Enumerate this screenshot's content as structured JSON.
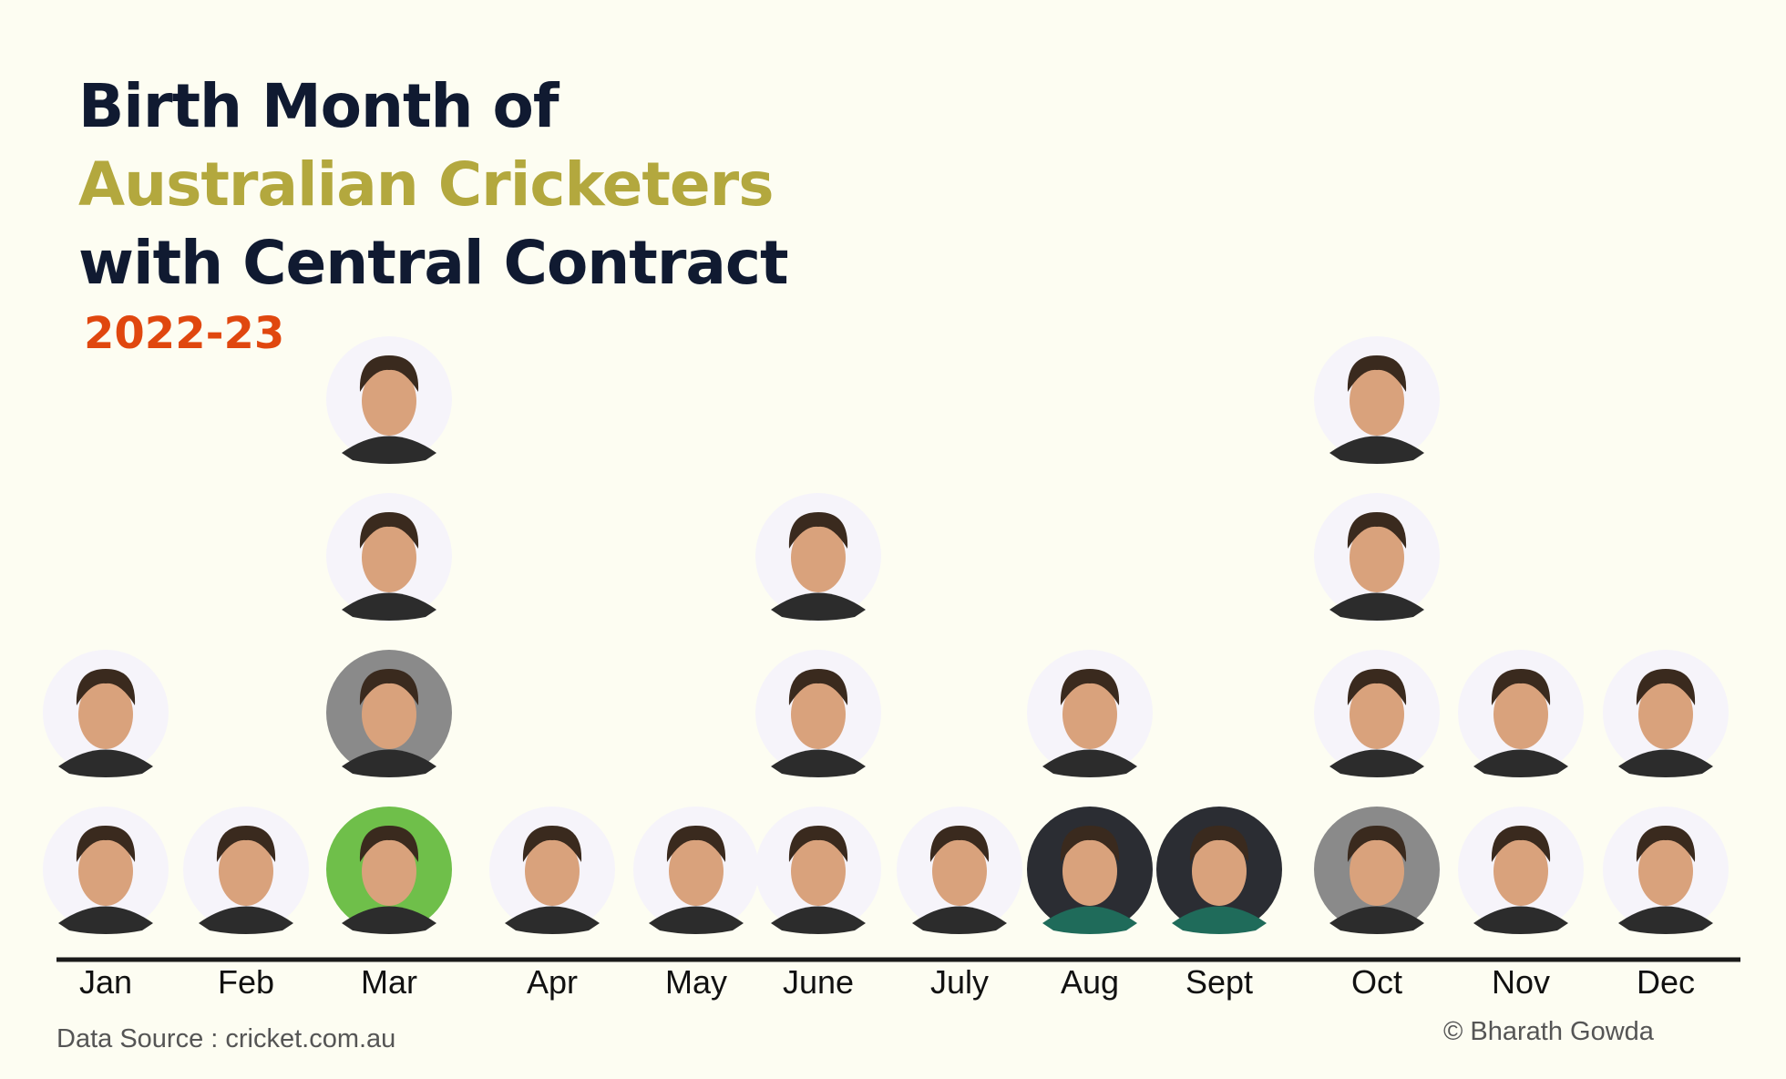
{
  "title": {
    "line1": "Birth Month of",
    "line2": "Australian Cricketers",
    "line3": "with Central Contract",
    "subtitle": "2022-23"
  },
  "colors": {
    "background": "#fdfdf2",
    "title_dark": "#101a31",
    "title_accent": "#b3a83e",
    "subtitle": "#e0470f",
    "axis": "#1a1a1a",
    "photo_bg_light": "#f6f4fa",
    "photo_bg_dark": "#2b2d33",
    "photo_bg_grey": "#8a8a8a",
    "photo_bg_green": "#6fbf4a",
    "skin": "#d9a27c",
    "hair": "#3a2a1e"
  },
  "chart_data": {
    "type": "bar",
    "categories": [
      "Jan",
      "Feb",
      "Mar",
      "Apr",
      "May",
      "June",
      "July",
      "Aug",
      "Sept",
      "Oct",
      "Nov",
      "Dec"
    ],
    "values": [
      2,
      1,
      4,
      1,
      1,
      3,
      1,
      2,
      1,
      4,
      2,
      2
    ],
    "ylim": [
      0,
      4
    ],
    "photo_backgrounds": [
      [
        "light",
        "light"
      ],
      [
        "light"
      ],
      [
        "green",
        "grey",
        "light",
        "light"
      ],
      [
        "light"
      ],
      [
        "light"
      ],
      [
        "light",
        "light",
        "light"
      ],
      [
        "light"
      ],
      [
        "dark",
        "light"
      ],
      [
        "dark"
      ],
      [
        "grey",
        "light",
        "light",
        "light"
      ],
      [
        "light",
        "light"
      ],
      [
        "light",
        "light"
      ]
    ]
  },
  "footer": {
    "source": "Data Source : cricket.com.au",
    "credit": "© Bharath Gowda"
  }
}
